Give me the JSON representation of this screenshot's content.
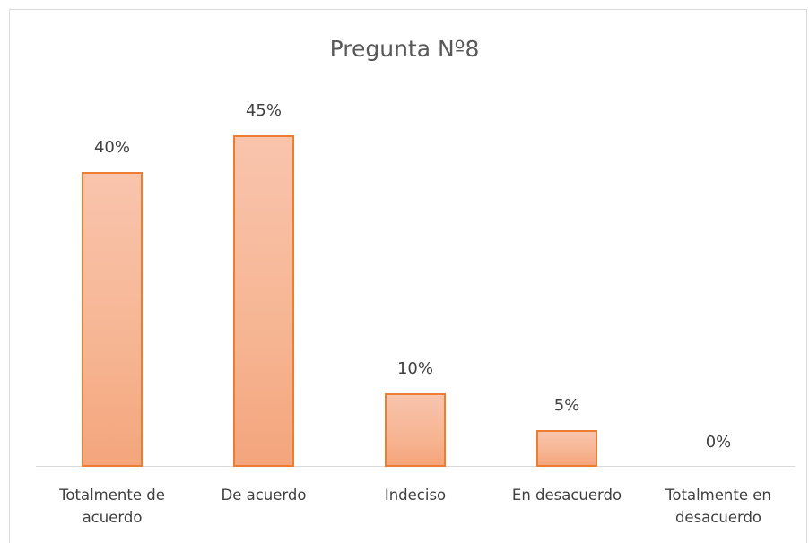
{
  "chart_data": {
    "type": "bar",
    "title": "Pregunta Nº8",
    "categories": [
      "Totalmente de acuerdo",
      "De acuerdo",
      "Indeciso",
      "En desacuerdo",
      "Totalmente en desacuerdo"
    ],
    "values": [
      40,
      45,
      10,
      5,
      0
    ],
    "value_labels": [
      "40%",
      "45%",
      "10%",
      "5%",
      "0%"
    ],
    "color": "#f6b592",
    "edge_color": "#ed7d31"
  }
}
